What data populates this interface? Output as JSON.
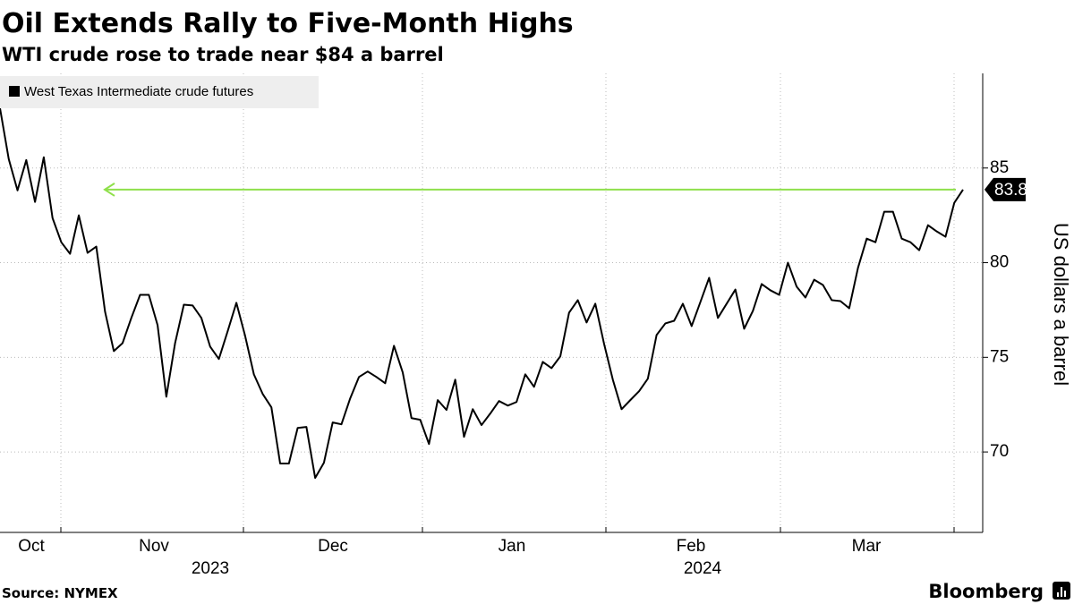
{
  "title": "Oil Extends Rally to Five-Month Highs",
  "subtitle": "WTI crude rose to trade near $84 a barrel",
  "source": "Source: NYMEX",
  "brand": "Bloomberg",
  "chart_data": {
    "type": "line",
    "series": [
      {
        "name": "West Texas Intermediate crude futures",
        "color": "#000000",
        "values": [
          88.16,
          85.47,
          83.82,
          85.42,
          83.21,
          85.57,
          82.36,
          81.08,
          80.47,
          82.5,
          80.52,
          80.85,
          77.41,
          75.33,
          75.75,
          77.08,
          78.3,
          78.3,
          76.7,
          72.92,
          75.75,
          77.78,
          77.74,
          77.08,
          75.57,
          74.91,
          76.37,
          77.88,
          76.13,
          74.1,
          73.07,
          72.36,
          69.39,
          69.39,
          71.27,
          71.32,
          68.63,
          69.43,
          71.56,
          71.46,
          72.83,
          73.96,
          74.25,
          73.96,
          73.63,
          75.61,
          74.2,
          71.79,
          71.7,
          70.42,
          72.74,
          72.22,
          73.82,
          70.8,
          72.26,
          71.42,
          72.03,
          72.69,
          72.45,
          72.64,
          74.1,
          73.44,
          74.76,
          74.43,
          75.05,
          77.36,
          78.02,
          76.84,
          77.83,
          75.71,
          73.82,
          72.26,
          72.74,
          73.21,
          73.87,
          76.18,
          76.79,
          76.93,
          77.83,
          76.65,
          77.92,
          79.2,
          77.08,
          77.83,
          78.58,
          76.51,
          77.45,
          78.87,
          78.54,
          78.3,
          80.0,
          78.73,
          78.16,
          79.1,
          78.82,
          78.02,
          77.97,
          77.59,
          79.72,
          81.27,
          81.08,
          82.69,
          82.69,
          81.27,
          81.08,
          80.66,
          81.98,
          81.65,
          81.37,
          83.16,
          83.86
        ]
      }
    ],
    "x_month_labels": [
      "Oct",
      "Nov",
      "Dec",
      "Jan",
      "Feb",
      "Mar"
    ],
    "x_year_labels": [
      "2023",
      "2024"
    ],
    "ylim": [
      65.75,
      90
    ],
    "yticks": [
      70,
      75,
      80,
      85
    ],
    "y_label": "US dollars a barrel",
    "grid": true,
    "highlight_color": "#8fe04b"
  }
}
